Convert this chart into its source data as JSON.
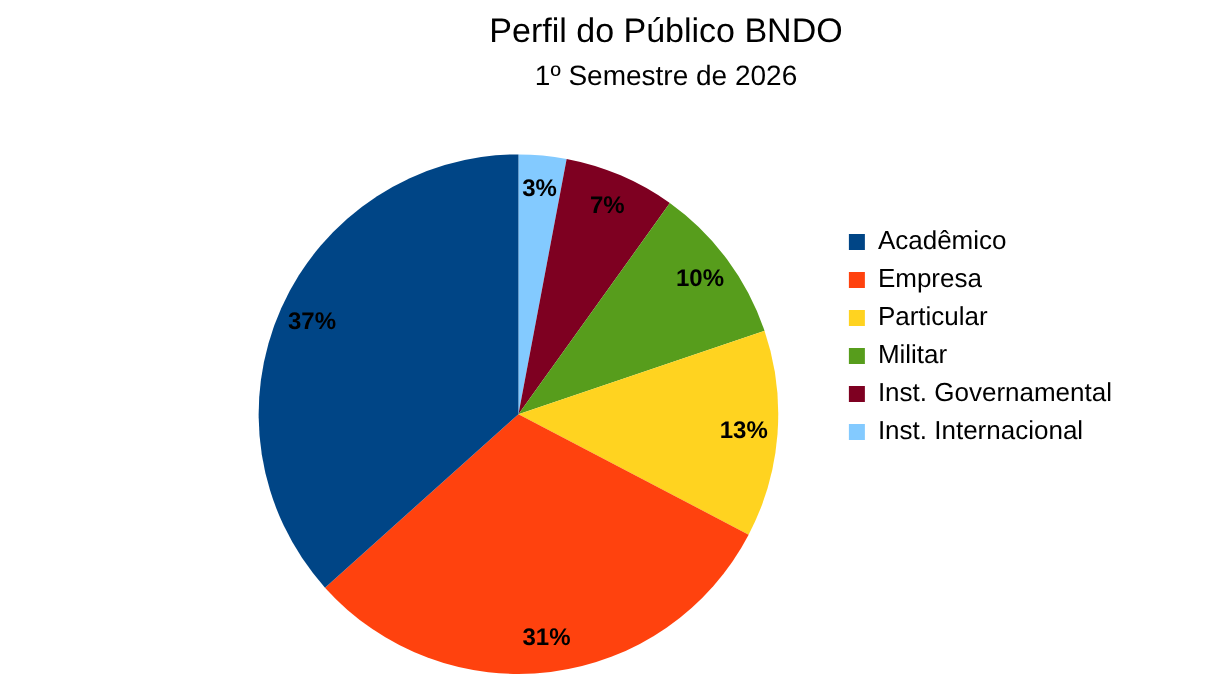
{
  "chart_data": {
    "type": "pie",
    "title": "Perfil do Público BNDO",
    "subtitle": "1º Semestre de 2026",
    "categories": [
      "Acadêmico",
      "Empresa",
      "Particular",
      "Militar",
      "Inst. Governamental",
      "Inst. Internacional"
    ],
    "values": [
      37,
      31,
      13,
      10,
      7,
      3
    ],
    "colors": [
      "#004586",
      "#ff420e",
      "#ffd320",
      "#579d1c",
      "#7e0021",
      "#83caff"
    ],
    "value_labels": [
      "37%",
      "31%",
      "13%",
      "10%",
      "7%",
      "3%"
    ],
    "legend": "right"
  }
}
